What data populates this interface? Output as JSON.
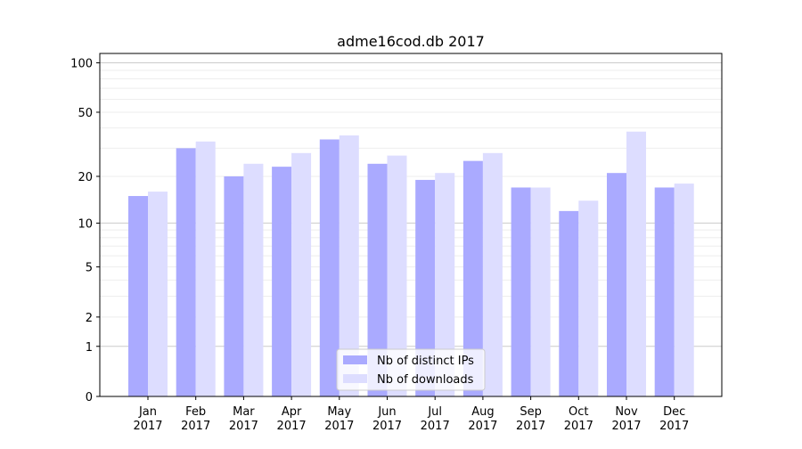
{
  "chart_data": {
    "type": "bar",
    "title": "adme16cod.db 2017",
    "xlabel": "",
    "ylabel": "",
    "y_scale": "log10(1+y)",
    "ylim": [
      0,
      114
    ],
    "yticks": [
      0,
      1,
      2,
      5,
      10,
      20,
      50,
      100
    ],
    "grid": true,
    "legend_position": "lower center",
    "categories": [
      "Jan\n2017",
      "Feb\n2017",
      "Mar\n2017",
      "Apr\n2017",
      "May\n2017",
      "Jun\n2017",
      "Jul\n2017",
      "Aug\n2017",
      "Sep\n2017",
      "Oct\n2017",
      "Nov\n2017",
      "Dec\n2017"
    ],
    "series": [
      {
        "name": "Nb of distinct IPs",
        "color": "#aaaaff",
        "values": [
          15,
          30,
          20,
          23,
          34,
          24,
          19,
          25,
          17,
          12,
          21,
          17
        ]
      },
      {
        "name": "Nb of downloads",
        "color": "#ddddff",
        "values": [
          16,
          33,
          24,
          28,
          36,
          27,
          21,
          28,
          17,
          14,
          38,
          18
        ]
      }
    ]
  }
}
